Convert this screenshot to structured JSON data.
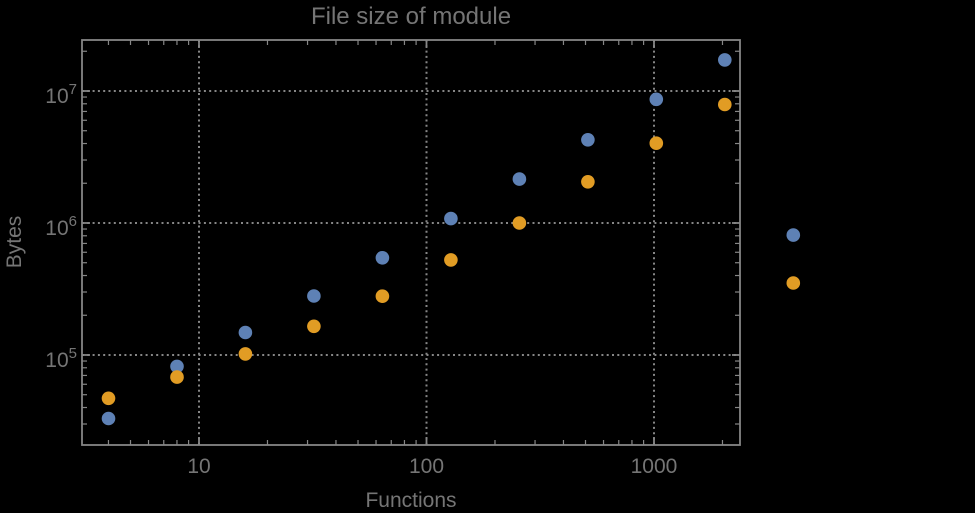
{
  "chart_data": {
    "type": "scatter",
    "title": "File size of module",
    "xlabel": "Functions",
    "ylabel": "Bytes",
    "x_scale": "log",
    "y_scale": "log",
    "xlim": [
      3.06,
      2388
    ],
    "ylim": [
      20800,
      24340000
    ],
    "legend": "none",
    "grid": {
      "style": "dotted",
      "x_lines": [
        10,
        100,
        1000
      ],
      "y_lines": [
        100000,
        1000000,
        10000000
      ]
    },
    "x_ticks": [
      {
        "value": 10,
        "label": "10"
      },
      {
        "value": 100,
        "label": "100"
      },
      {
        "value": 1000,
        "label": "1000"
      }
    ],
    "y_ticks": [
      {
        "value": 100000,
        "base": "10",
        "exp": "5"
      },
      {
        "value": 1000000,
        "base": "10",
        "exp": "6"
      },
      {
        "value": 10000000,
        "base": "10",
        "exp": "7"
      }
    ],
    "x": [
      4,
      8,
      16,
      32,
      64,
      128,
      256,
      512,
      1024,
      2048,
      4096
    ],
    "series": [
      {
        "key": "blue-series",
        "color": "#5e81b5",
        "values": [
          33000,
          82000,
          148000,
          280000,
          545000,
          1080000,
          2150000,
          4270000,
          8650000,
          17200000,
          810000
        ]
      },
      {
        "key": "orange-series",
        "color": "#e19c24",
        "values": [
          47000,
          68000,
          102000,
          165000,
          279000,
          525000,
          1000000,
          2050000,
          4020000,
          7900000,
          351000
        ]
      }
    ]
  },
  "colors": {
    "background": "#000000",
    "frame": "#868686",
    "grid": "#868686",
    "text": "#757575"
  }
}
